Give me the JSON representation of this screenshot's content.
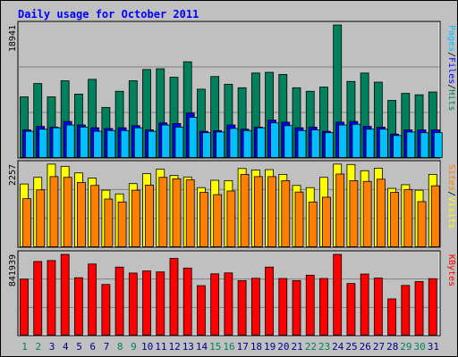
{
  "chart_data": [
    {
      "type": "bar",
      "title": "Daily usage for October 2011",
      "categories": [
        "1",
        "2",
        "3",
        "4",
        "5",
        "6",
        "7",
        "8",
        "9",
        "10",
        "11",
        "12",
        "13",
        "14",
        "15",
        "16",
        "17",
        "18",
        "19",
        "20",
        "21",
        "22",
        "23",
        "24",
        "25",
        "26",
        "27",
        "28",
        "29",
        "30",
        "31"
      ],
      "weekend_days": [
        "1",
        "2",
        "8",
        "9",
        "15",
        "16",
        "22",
        "23",
        "29",
        "30"
      ],
      "ylim": [
        0,
        18941
      ],
      "y_tick_label": "18941",
      "right_label": [
        "Pages",
        "Files",
        "Hits"
      ],
      "series": [
        {
          "name": "Hits",
          "values": [
            8700,
            10600,
            8700,
            11000,
            9100,
            11200,
            7200,
            9500,
            11000,
            12600,
            12700,
            11500,
            13700,
            9800,
            11600,
            10500,
            10000,
            12100,
            12200,
            11900,
            10000,
            9500,
            10100,
            18941,
            10900,
            12100,
            10800,
            8200,
            9200,
            9000,
            9400
          ]
        },
        {
          "name": "Files",
          "values": [
            4000,
            4500,
            4400,
            5200,
            4700,
            4300,
            4200,
            4300,
            4600,
            4000,
            5000,
            4900,
            6400,
            3800,
            3900,
            4700,
            4100,
            4400,
            5400,
            5100,
            4300,
            4400,
            3800,
            5100,
            5200,
            4500,
            4400,
            3400,
            4000,
            4000,
            4000
          ]
        },
        {
          "name": "Pages",
          "values": [
            3800,
            4100,
            4300,
            4700,
            4400,
            3800,
            3900,
            3900,
            4300,
            3800,
            4700,
            4400,
            5800,
            3600,
            3700,
            4200,
            3900,
            4300,
            5000,
            4600,
            3900,
            4000,
            3600,
            4700,
            4800,
            4100,
            4100,
            3200,
            3700,
            3600,
            3600
          ]
        }
      ],
      "colors": {
        "Hits": "#00805c",
        "Files": "#0000ff",
        "Pages": "#00c0ff"
      }
    },
    {
      "type": "bar",
      "ylim": [
        0,
        2257
      ],
      "y_tick_label": "2257",
      "right_label": [
        "Sites",
        "Visits"
      ],
      "series": [
        {
          "name": "Visits",
          "values": [
            1720,
            1900,
            2260,
            2200,
            2020,
            1880,
            1550,
            1450,
            1730,
            2000,
            2120,
            1950,
            1910,
            1620,
            1820,
            1810,
            2140,
            2100,
            2110,
            1980,
            1680,
            1620,
            1900,
            2260,
            2250,
            2080,
            2150,
            1600,
            1700,
            1550,
            1980
          ]
        },
        {
          "name": "Sites",
          "values": [
            1320,
            1560,
            1920,
            1900,
            1760,
            1680,
            1310,
            1230,
            1550,
            1690,
            1900,
            1860,
            1830,
            1490,
            1430,
            1530,
            1980,
            1920,
            1920,
            1810,
            1500,
            1230,
            1360,
            1990,
            1810,
            1790,
            1850,
            1490,
            1570,
            1240,
            1670
          ]
        }
      ],
      "colors": {
        "Visits": "#ffff00",
        "Sites": "#ff8000"
      }
    },
    {
      "type": "bar",
      "ylim": [
        0,
        841939
      ],
      "y_tick_label": "841939",
      "right_label": [
        "KBytes"
      ],
      "series": [
        {
          "name": "KBytes",
          "values": [
            585000,
            768000,
            778000,
            841939,
            600000,
            742000,
            530000,
            710000,
            648000,
            670000,
            660000,
            800000,
            700000,
            518000,
            640000,
            650000,
            570000,
            594000,
            710000,
            592000,
            570000,
            626000,
            592000,
            841939,
            540000,
            638000,
            596000,
            380000,
            520000,
            560000,
            590000
          ]
        }
      ],
      "colors": {
        "KBytes": "#ff0000"
      }
    }
  ],
  "colors": {
    "weekday_label": "#00008b",
    "weekend_label": "#00805c",
    "title": "#0000ff",
    "panel_bg": "#c0c0c0",
    "frame_bg": "#c0c0c0"
  }
}
